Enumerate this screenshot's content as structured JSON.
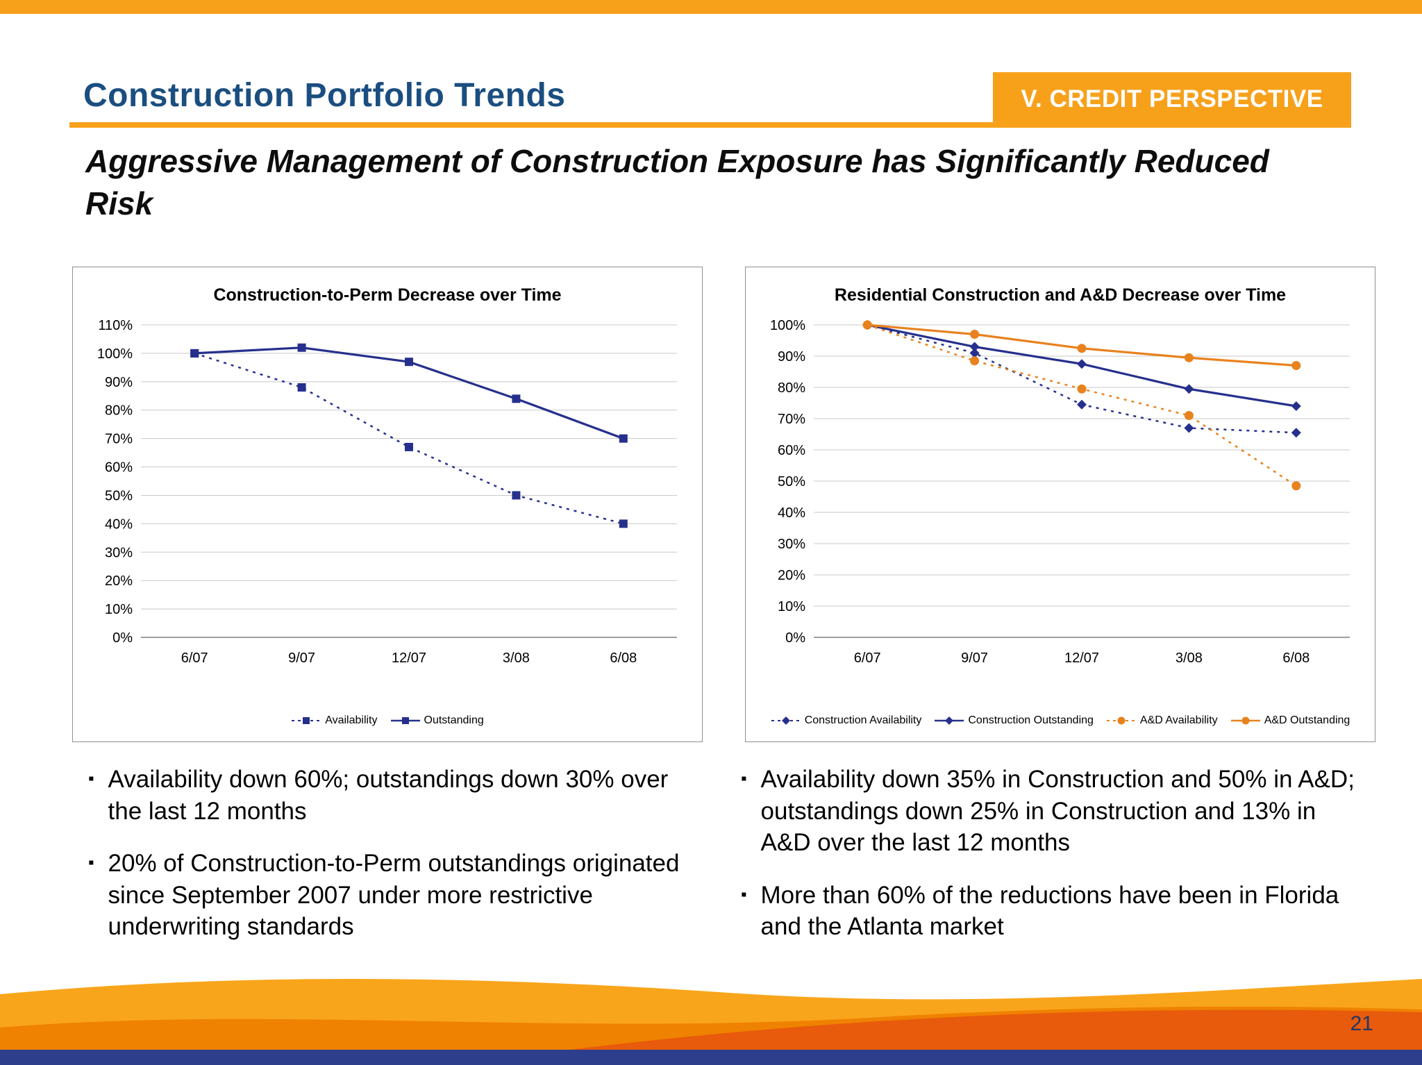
{
  "slide": {
    "title": "Construction Portfolio Trends",
    "badge": "V. CREDIT PERSPECTIVE",
    "subtitle": "Aggressive Management of Construction Exposure has Significantly Reduced Risk",
    "page_number": "21"
  },
  "colors": {
    "accent_orange": "#F7A11B",
    "title_blue": "#1B4E80",
    "series_navy": "#26308C",
    "series_orange": "#E8821E",
    "footer_blue": "#2C3E8C",
    "wave_light_orange": "#F9A51B",
    "wave_mid_orange": "#EF8200",
    "wave_deep_orange": "#E85A0C",
    "gridline_gray": "#C8C8C8"
  },
  "bullets": {
    "left": [
      "Availability down 60%; outstandings down 30% over the last 12 months",
      "20% of Construction-to-Perm outstandings originated since September 2007 under more restrictive underwriting standards"
    ],
    "right": [
      "Availability down 35% in Construction and 50% in A&D; outstandings down 25% in Construction and 13% in A&D over the last 12 months",
      "More than 60% of the reductions have been in Florida and the Atlanta market"
    ]
  },
  "chart_data": [
    {
      "type": "line",
      "title": "Construction-to-Perm Decrease over Time",
      "categories": [
        "6/07",
        "9/07",
        "12/07",
        "3/08",
        "6/08"
      ],
      "ylim": [
        0,
        110
      ],
      "ytick_step": 10,
      "ytick_suffix": "%",
      "grid": true,
      "legend_position": "bottom",
      "series": [
        {
          "name": "Availability",
          "values": [
            100,
            88,
            67,
            50,
            40
          ],
          "color": "#26308C",
          "dash": true,
          "marker": "square"
        },
        {
          "name": "Outstanding",
          "values": [
            100,
            102,
            97,
            84,
            70
          ],
          "color": "#26308C",
          "dash": false,
          "marker": "square"
        }
      ]
    },
    {
      "type": "line",
      "title": "Residential Construction and A&D Decrease over Time",
      "categories": [
        "6/07",
        "9/07",
        "12/07",
        "3/08",
        "6/08"
      ],
      "ylim": [
        0,
        100
      ],
      "ytick_step": 10,
      "ytick_suffix": "%",
      "grid": true,
      "legend_position": "bottom",
      "series": [
        {
          "name": "Construction Availability",
          "values": [
            100,
            91,
            74.5,
            67,
            65.5
          ],
          "color": "#26308C",
          "dash": true,
          "marker": "diamond"
        },
        {
          "name": "Construction Outstanding",
          "values": [
            100,
            93,
            87.5,
            79.5,
            74
          ],
          "color": "#26308C",
          "dash": false,
          "marker": "diamond"
        },
        {
          "name": "A&D Availability",
          "values": [
            100,
            88.5,
            79.5,
            71,
            48.5
          ],
          "color": "#E8821E",
          "dash": true,
          "marker": "circle"
        },
        {
          "name": "A&D Outstanding",
          "values": [
            100,
            97,
            92.5,
            89.5,
            87
          ],
          "color": "#E8821E",
          "dash": false,
          "marker": "circle"
        }
      ]
    }
  ]
}
